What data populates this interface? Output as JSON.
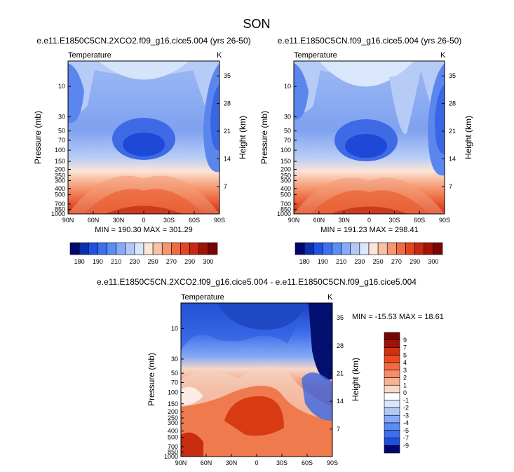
{
  "figure_title": "SON",
  "chart_data": [
    {
      "type": "heatmap",
      "title": "e.e11.E1850C5CN.2XCO2.f09_g16.cice5.004 (yrs 26-50)",
      "variable": "Temperature",
      "units": "K",
      "xlabel": "",
      "ylabel": "Pressure (mb)",
      "ylabel_right": "Height (km)",
      "x_ticks": [
        "90N",
        "60N",
        "30N",
        "0",
        "30S",
        "60S",
        "90S"
      ],
      "y_ticks": [
        "10",
        "30",
        "50",
        "70",
        "100",
        "150",
        "200",
        "250",
        "300",
        "400",
        "500",
        "700",
        "850",
        "1000"
      ],
      "y_ticks_right": [
        "35",
        "28",
        "21",
        "14",
        "7"
      ],
      "stats": "MIN = 190.30   MAX = 301.29",
      "min": 190.3,
      "max": 301.29
    },
    {
      "type": "heatmap",
      "title": "e.e11.E1850C5CN.f09_g16.cice5.004 (yrs 26-50)",
      "variable": "Temperature",
      "units": "K",
      "xlabel": "",
      "ylabel": "Pressure (mb)",
      "ylabel_right": "Height (km)",
      "x_ticks": [
        "90N",
        "60N",
        "30N",
        "0",
        "30S",
        "60S",
        "90S"
      ],
      "y_ticks": [
        "10",
        "30",
        "50",
        "70",
        "100",
        "150",
        "200",
        "250",
        "300",
        "400",
        "500",
        "700",
        "850",
        "1000"
      ],
      "y_ticks_right": [
        "35",
        "28",
        "21",
        "14",
        "7"
      ],
      "stats": "MIN = 191.23   MAX = 298.41",
      "min": 191.23,
      "max": 298.41
    },
    {
      "type": "heatmap",
      "title": "e.e11.E1850C5CN.2XCO2.f09_g16.cice5.004 - e.e11.E1850C5CN.f09_g16.cice5.004",
      "variable": "Temperature",
      "units": "K",
      "xlabel": "",
      "ylabel": "Pressure (mb)",
      "ylabel_right": "Height (km)",
      "x_ticks": [
        "90N",
        "60N",
        "30N",
        "0",
        "30S",
        "60S",
        "90S"
      ],
      "y_ticks": [
        "10",
        "30",
        "50",
        "70",
        "100",
        "150",
        "200",
        "250",
        "300",
        "400",
        "500",
        "700",
        "850",
        "1000"
      ],
      "y_ticks_right": [
        "35",
        "28",
        "21",
        "14",
        "7"
      ],
      "stats": "MIN = -15.53  MAX =  18.61",
      "min": -15.53,
      "max": 18.61
    }
  ],
  "colorbar_main": {
    "labels": [
      "180",
      "190",
      "210",
      "230",
      "250",
      "270",
      "290",
      "300"
    ],
    "colors": [
      "#02066f",
      "#0b2fad",
      "#1f50e0",
      "#3c6ff0",
      "#5b8cf5",
      "#86aaf7",
      "#b2c9f8",
      "#d9e6fb",
      "#fce6da",
      "#f8c0a4",
      "#f49670",
      "#ef6c42",
      "#e44521",
      "#c82812",
      "#a31207",
      "#7a0404"
    ]
  },
  "colorbar_diff": {
    "labels": [
      "9",
      "7",
      "5",
      "4",
      "3",
      "2",
      "1",
      "0",
      "-1",
      "-2",
      "-3",
      "-4",
      "-5",
      "-7",
      "-9"
    ],
    "colors": [
      "#7a0404",
      "#a31207",
      "#d3310f",
      "#ef4a1f",
      "#f26b3f",
      "#f58e66",
      "#f8b394",
      "#fbd8c3",
      "#ffffff",
      "#d8e5fb",
      "#b2c9f8",
      "#86aaf7",
      "#5b8cf5",
      "#3c6ff0",
      "#1f50e0",
      "#02066f"
    ]
  }
}
